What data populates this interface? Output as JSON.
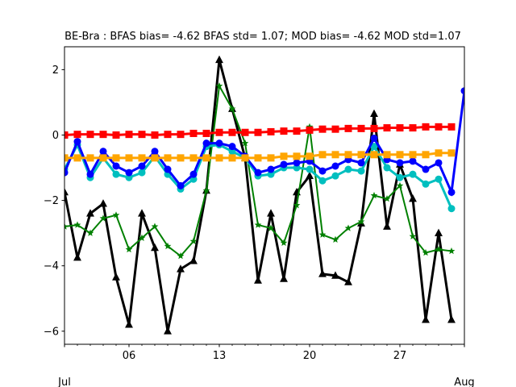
{
  "chart_data": {
    "type": "line",
    "title": "BE-Bra   : BFAS bias= -4.62 BFAS std= 1.07; MOD bias= -4.62 MOD std=1.07",
    "xlabel": "",
    "ylabel": "",
    "x_range": [
      "2006-07-01",
      "2006-08-01"
    ],
    "ylim": [
      -6.4,
      2.7
    ],
    "grid": false,
    "x_ticks": [
      {
        "date": "2006-07-06",
        "label": "06"
      },
      {
        "date": "2006-07-13",
        "label": "13"
      },
      {
        "date": "2006-07-20",
        "label": "20"
      },
      {
        "date": "2006-07-27",
        "label": "27"
      }
    ],
    "x_month_labels": [
      {
        "date": "2006-07-01",
        "label": "Jul"
      },
      {
        "date": "2006-08-01",
        "label": "Aug"
      }
    ],
    "y_ticks": [
      2,
      0,
      -2,
      -4,
      -6
    ],
    "y_tick_labels": [
      "2",
      "0",
      "−2",
      "−4",
      "−6"
    ],
    "x": [
      "2006-07-01",
      "2006-07-02",
      "2006-07-03",
      "2006-07-04",
      "2006-07-05",
      "2006-07-06",
      "2006-07-07",
      "2006-07-08",
      "2006-07-09",
      "2006-07-10",
      "2006-07-11",
      "2006-07-12",
      "2006-07-13",
      "2006-07-14",
      "2006-07-15",
      "2006-07-16",
      "2006-07-17",
      "2006-07-18",
      "2006-07-19",
      "2006-07-20",
      "2006-07-21",
      "2006-07-22",
      "2006-07-23",
      "2006-07-24",
      "2006-07-25",
      "2006-07-26",
      "2006-07-27",
      "2006-07-28",
      "2006-07-29",
      "2006-07-30",
      "2006-07-31",
      "2006-08-01"
    ],
    "series": [
      {
        "color": "#000000",
        "marker": "triangle",
        "linewidth": 3,
        "values": [
          -1.75,
          -3.75,
          -2.4,
          -2.1,
          -4.35,
          -5.8,
          -2.4,
          -3.45,
          -6.0,
          -4.1,
          -3.85,
          -1.7,
          2.3,
          0.8,
          -0.7,
          -4.45,
          -2.4,
          -4.4,
          -1.75,
          -1.25,
          -4.25,
          -4.3,
          -4.5,
          -2.7,
          0.65,
          -2.8,
          -0.9,
          -1.95,
          -5.65,
          -3.0,
          -5.65,
          null
        ]
      },
      {
        "color": "#008000",
        "marker": "star",
        "linewidth": 2,
        "values": [
          -2.8,
          -2.75,
          -3.0,
          -2.55,
          -2.45,
          -3.5,
          -3.15,
          -2.8,
          -3.4,
          -3.7,
          -3.25,
          -1.7,
          1.5,
          0.8,
          -0.25,
          -2.75,
          -2.85,
          -3.3,
          -2.15,
          0.25,
          -3.05,
          -3.2,
          -2.85,
          -2.65,
          -1.85,
          -1.95,
          -1.55,
          -3.1,
          -3.6,
          -3.5,
          -3.55,
          null
        ]
      },
      {
        "color": "#00bfbf",
        "marker": "circle",
        "linewidth": 3,
        "values": [
          -1.05,
          -0.3,
          -1.3,
          -0.7,
          -1.2,
          -1.3,
          -1.15,
          -0.65,
          -1.2,
          -1.65,
          -1.35,
          -0.35,
          -0.3,
          -0.5,
          -0.7,
          -1.25,
          -1.2,
          -1.0,
          -1.0,
          -1.05,
          -1.4,
          -1.25,
          -1.05,
          -1.1,
          -0.35,
          -1.0,
          -1.3,
          -1.2,
          -1.5,
          -1.35,
          -2.25,
          null
        ]
      },
      {
        "color": "#0000ff",
        "marker": "circle",
        "linewidth": 3,
        "values": [
          -1.15,
          -0.2,
          -1.2,
          -0.5,
          -0.95,
          -1.15,
          -0.95,
          -0.5,
          -1.05,
          -1.55,
          -1.2,
          -0.25,
          -0.25,
          -0.35,
          -0.65,
          -1.15,
          -1.05,
          -0.9,
          -0.85,
          -0.8,
          -1.1,
          -0.95,
          -0.75,
          -0.85,
          -0.1,
          -0.75,
          -0.85,
          -0.8,
          -1.05,
          -0.85,
          -1.75,
          1.35
        ]
      },
      {
        "color": "#ffa500",
        "marker": "square",
        "linewidth": 3,
        "values": [
          -0.7,
          -0.7,
          -0.7,
          -0.7,
          -0.7,
          -0.7,
          -0.7,
          -0.7,
          -0.7,
          -0.7,
          -0.7,
          -0.7,
          -0.7,
          -0.7,
          -0.7,
          -0.7,
          -0.7,
          -0.65,
          -0.65,
          -0.65,
          -0.6,
          -0.6,
          -0.6,
          -0.6,
          -0.6,
          -0.6,
          -0.6,
          -0.6,
          -0.6,
          -0.55,
          -0.55,
          null
        ]
      },
      {
        "color": "#ff0000",
        "marker": "square",
        "linewidth": 3,
        "values": [
          0.0,
          0.02,
          0.02,
          0.02,
          0.0,
          0.02,
          0.02,
          0.0,
          0.02,
          0.02,
          0.05,
          0.05,
          0.08,
          0.08,
          0.08,
          0.08,
          0.1,
          0.12,
          0.12,
          0.15,
          0.18,
          0.18,
          0.2,
          0.2,
          0.2,
          0.22,
          0.22,
          0.22,
          0.25,
          0.25,
          0.25,
          null
        ]
      }
    ]
  }
}
